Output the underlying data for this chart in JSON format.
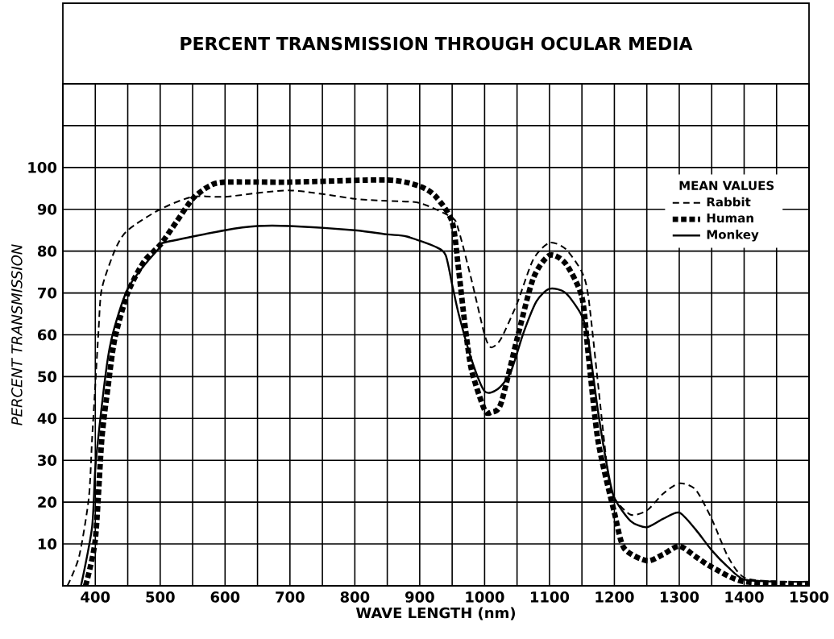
{
  "chart_data": {
    "type": "line",
    "title": "PERCENT TRANSMISSION THROUGH OCULAR MEDIA",
    "xlabel": "WAVE LENGTH (nm)",
    "ylabel": "PERCENT TRANSMISSION",
    "legend_title": "MEAN VALUES",
    "xlim": [
      350,
      1500
    ],
    "ylim": [
      0,
      120
    ],
    "xticks": [
      {
        "value": 400,
        "label": "400"
      },
      {
        "value": 450,
        "label": null
      },
      {
        "value": 500,
        "label": "500"
      },
      {
        "value": 550,
        "label": null
      },
      {
        "value": 600,
        "label": "600"
      },
      {
        "value": 650,
        "label": null
      },
      {
        "value": 700,
        "label": "700"
      },
      {
        "value": 750,
        "label": null
      },
      {
        "value": 800,
        "label": "800"
      },
      {
        "value": 850,
        "label": null
      },
      {
        "value": 900,
        "label": "900"
      },
      {
        "value": 950,
        "label": null
      },
      {
        "value": 1000,
        "label": "1000"
      },
      {
        "value": 1050,
        "label": null
      },
      {
        "value": 1100,
        "label": "1100"
      },
      {
        "value": 1150,
        "label": null
      },
      {
        "value": 1200,
        "label": "1200"
      },
      {
        "value": 1250,
        "label": null
      },
      {
        "value": 1300,
        "label": "1300"
      },
      {
        "value": 1350,
        "label": null
      },
      {
        "value": 1400,
        "label": "1400"
      },
      {
        "value": 1450,
        "label": null
      },
      {
        "value": 1500,
        "label": "1500"
      }
    ],
    "yticks": [
      10,
      20,
      30,
      40,
      50,
      60,
      70,
      80,
      90,
      100,
      {
        "value": 110,
        "label": null
      }
    ],
    "grid": true,
    "legend": "top right",
    "series": [
      {
        "name": "Rabbit",
        "color": "#000000",
        "line_style": "dashed",
        "x": [
          357,
          375,
          390,
          395,
          400,
          405,
          410,
          431,
          450,
          500,
          550,
          600,
          700,
          800,
          850,
          900,
          950,
          960,
          980,
          1000,
          1010,
          1025,
          1050,
          1075,
          1100,
          1125,
          1150,
          1160,
          1175,
          1190,
          1200,
          1225,
          1250,
          1275,
          1300,
          1325,
          1350,
          1375,
          1400,
          1450,
          1500
        ],
        "values": [
          0,
          7,
          21,
          35,
          48,
          61,
          71,
          80.5,
          85,
          90,
          93,
          93,
          94.5,
          92.5,
          92,
          91.5,
          88,
          85,
          73,
          60,
          57,
          59,
          67.5,
          78,
          82,
          80.5,
          75,
          69,
          48,
          27,
          21,
          17,
          18,
          22,
          24.5,
          23,
          16,
          7,
          2,
          1,
          1
        ]
      },
      {
        "name": "Human",
        "color": "#000000",
        "line_style": "dotted",
        "x": [
          385,
          400,
          410,
          420,
          430,
          450,
          475,
          500,
          525,
          550,
          575,
          600,
          700,
          850,
          900,
          925,
          950,
          960,
          970,
          980,
          1000,
          1010,
          1025,
          1050,
          1075,
          1100,
          1125,
          1150,
          1160,
          1175,
          1200,
          1215,
          1250,
          1275,
          1300,
          1325,
          1350,
          1400,
          1500
        ],
        "values": [
          0,
          11,
          35,
          48,
          59,
          70,
          77.5,
          81.5,
          87,
          92.5,
          95.5,
          96.5,
          96.5,
          97,
          95.5,
          93,
          87,
          75.5,
          62,
          51.5,
          42,
          41.5,
          43.5,
          59,
          73.5,
          79,
          77,
          69,
          55,
          34.5,
          17.5,
          9,
          6,
          7.5,
          9.5,
          7,
          4.5,
          1,
          0.5
        ]
      },
      {
        "name": "Monkey",
        "color": "#000000",
        "line_style": "solid",
        "x": [
          378,
          395,
          400,
          410,
          420,
          430,
          450,
          475,
          500,
          505,
          600,
          650,
          700,
          800,
          850,
          880,
          925,
          940,
          950,
          960,
          980,
          1000,
          1020,
          1040,
          1060,
          1080,
          1100,
          1125,
          1150,
          1160,
          1175,
          1190,
          1200,
          1225,
          1250,
          1275,
          1300,
          1325,
          1350,
          1375,
          1400,
          1450
        ],
        "values": [
          0,
          14,
          28,
          43,
          55,
          62,
          71,
          76.5,
          81,
          82,
          85,
          86,
          86,
          85,
          84,
          83.5,
          81,
          79,
          72,
          65,
          54,
          46.5,
          47,
          51,
          60.5,
          68,
          71,
          70,
          64.5,
          58.5,
          41.5,
          27.5,
          21,
          15.5,
          14,
          16,
          17.5,
          13.5,
          8.5,
          4.5,
          1.5,
          1
        ]
      }
    ]
  }
}
